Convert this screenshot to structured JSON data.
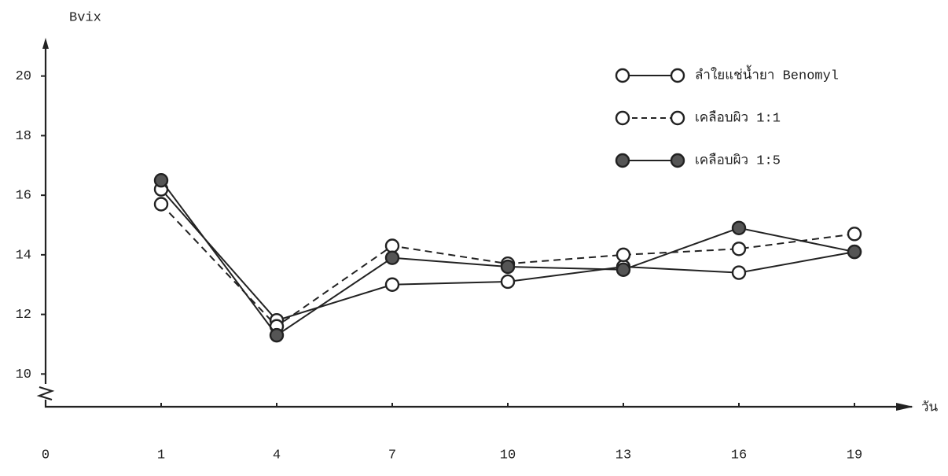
{
  "chart_data": {
    "type": "line",
    "y_label": "Bvix",
    "x_label": "วัน",
    "categories": [
      "0",
      "1",
      "4",
      "7",
      "10",
      "13",
      "16",
      "19"
    ],
    "ylim": [
      8.9,
      21.1
    ],
    "yticks": [
      10,
      12,
      14,
      16,
      18,
      20
    ],
    "legend": "top-right",
    "series": [
      {
        "name": "ลำใยแช่น้ำยา Benomyl",
        "color": "#222222",
        "line_style": "solid",
        "marker": "open",
        "values": [
          null,
          16.2,
          11.8,
          13.0,
          13.1,
          13.6,
          13.4,
          14.1
        ]
      },
      {
        "name": "เคลือบผิว  1:1",
        "color": "#222222",
        "line_style": "dashed",
        "marker": "open",
        "values": [
          null,
          15.7,
          11.6,
          14.3,
          13.7,
          14.0,
          14.2,
          14.7
        ]
      },
      {
        "name": "เคลือบผิว  1:5",
        "color": "#222222",
        "line_style": "solid",
        "marker": "filled",
        "values": [
          null,
          16.5,
          11.3,
          13.9,
          13.6,
          13.5,
          14.9,
          14.1
        ]
      }
    ]
  }
}
